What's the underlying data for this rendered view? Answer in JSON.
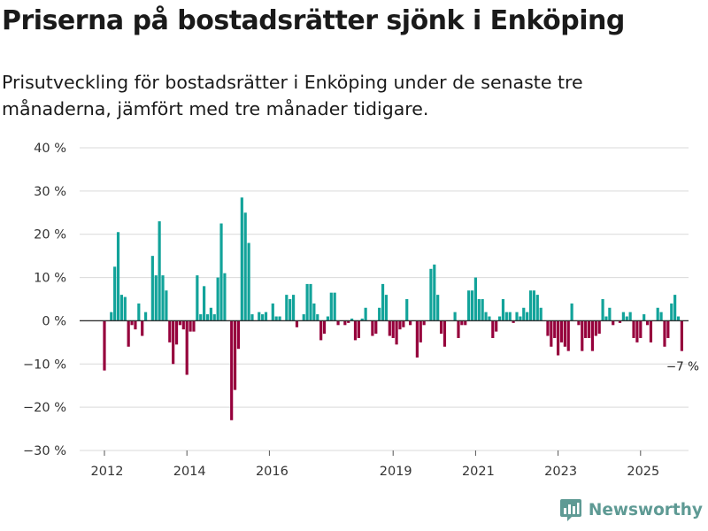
{
  "title": "Priserna på bostadsrätter sjönk i Enköping",
  "subtitle": "Prisutveckling för bostadsrätter i Enköping under de senaste tre månaderna, jämfört med tre månader tidigare.",
  "brand": {
    "name": "Newsworthy",
    "icon": "newsworthy-logo-icon",
    "color": "#5e9a94"
  },
  "chart_data": {
    "type": "bar",
    "title": "Priserna på bostadsrätter sjönk i Enköping",
    "xlabel": "",
    "ylabel": "",
    "y_ticks": [
      40,
      30,
      20,
      10,
      0,
      -10,
      -20,
      -30
    ],
    "y_tick_labels": [
      "40 %",
      "30 %",
      "20 %",
      "10 %",
      "0 %",
      "−10 %",
      "−20 %",
      "−30 %"
    ],
    "ylim": [
      -30,
      40
    ],
    "x_ticks": [
      {
        "year": 2012,
        "label": "2012"
      },
      {
        "year": 2014,
        "label": "2014"
      },
      {
        "year": 2016,
        "label": "2016"
      },
      {
        "year": 2019,
        "label": "2019"
      },
      {
        "year": 2021,
        "label": "2021"
      },
      {
        "year": 2023,
        "label": "2023"
      },
      {
        "year": 2025,
        "label": "2025"
      }
    ],
    "start": {
      "year": 2012,
      "month": 1
    },
    "unit": "monthly",
    "positive_color": "#12a39a",
    "negative_color": "#96003c",
    "annotation": {
      "text": "−7 %",
      "value": -7
    },
    "values": [
      -11.5,
      0,
      2,
      12.5,
      20.5,
      6,
      5.5,
      -6,
      -1,
      -2,
      4,
      -3.5,
      2,
      0,
      15,
      10.5,
      23,
      10.5,
      7,
      -5,
      -10,
      -5.5,
      -1,
      -2,
      -12.5,
      -2.5,
      -2.5,
      10.5,
      1.5,
      8,
      1.5,
      3,
      1.5,
      10,
      22.5,
      11,
      0,
      -23,
      -16,
      -6.5,
      28.5,
      25,
      18,
      1.5,
      0,
      2,
      1.5,
      2,
      0,
      4,
      1,
      1,
      0,
      6,
      5,
      6,
      -1.5,
      0,
      1.5,
      8.5,
      8.5,
      4,
      1.5,
      -4.5,
      -3,
      1,
      6.5,
      6.5,
      -1,
      0,
      -1,
      -0.5,
      0.5,
      -4.5,
      -4,
      0.5,
      3,
      0,
      -3.5,
      -3,
      3,
      8.5,
      6,
      -3.5,
      -4,
      -5.5,
      -2,
      -1.5,
      5,
      -1,
      0,
      -8.5,
      -5,
      -1,
      0,
      12,
      13,
      6,
      -3,
      -6,
      0,
      0,
      2,
      -4,
      -1,
      -1,
      7,
      7,
      10,
      5,
      5,
      2,
      1,
      -4,
      -2.5,
      1,
      5,
      2,
      2,
      -0.5,
      2,
      1,
      3,
      2,
      7,
      7,
      6,
      3,
      0,
      -3.5,
      -6,
      -4,
      -8,
      -5,
      -6,
      -7,
      4,
      0,
      -1,
      -7,
      -4,
      -4,
      -7,
      -3.5,
      -3,
      5,
      1,
      3,
      -1,
      0,
      -0.5,
      2,
      1,
      2,
      -4,
      -5,
      -4,
      1.5,
      -1,
      -5,
      0,
      3,
      2,
      -6,
      -4,
      4,
      6,
      1,
      -7
    ],
    "value_unit": "%"
  }
}
